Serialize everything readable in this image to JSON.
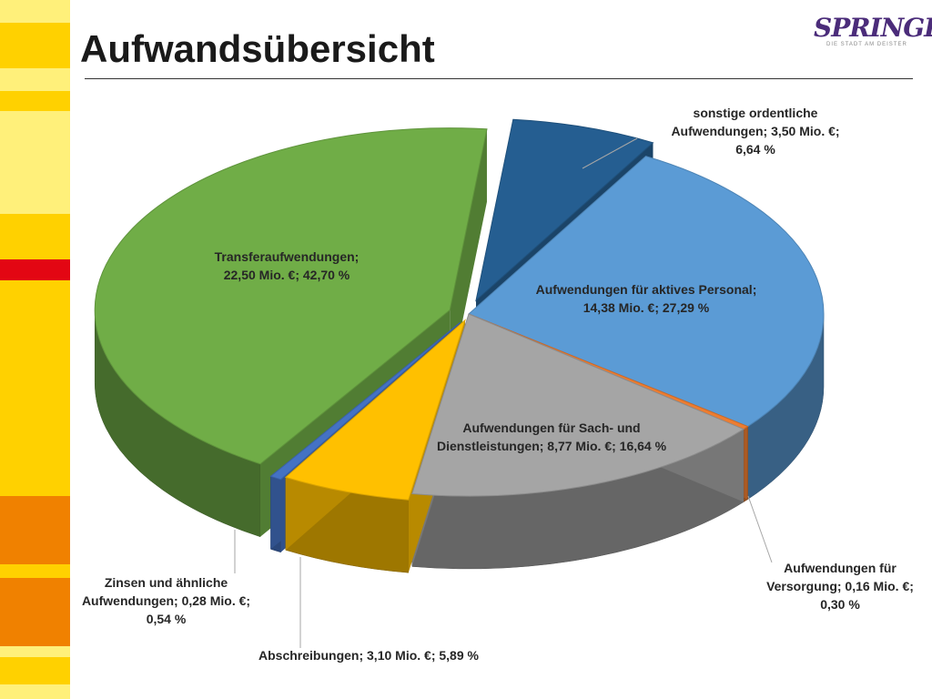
{
  "slide": {
    "title": "Aufwandsübersicht"
  },
  "logo": {
    "text": "SPRINGE.",
    "tagline": "DIE STADT AM DEISTER"
  },
  "colors": {
    "stripe_palette": [
      "#ffd100",
      "#fff07a",
      "#f7e24a",
      "#e30613",
      "#f08100"
    ],
    "green": "#70ad47",
    "blue": "#5b9bd5",
    "dark_blue": "#255e91",
    "gray": "#a5a5a5",
    "gold": "#ffc000",
    "orange": "#ed7d31",
    "small_blue": "#4472c4"
  },
  "chart_data": {
    "type": "pie",
    "unit": "Mio. €",
    "slices": [
      {
        "label_line1": "sonstige ordentliche",
        "label_line2": "Aufwendungen; 3,50 Mio. €;",
        "label_line3": "6,64 %",
        "value": 3.5,
        "percent": 6.64,
        "color": "#255e91"
      },
      {
        "label_line1": "Aufwendungen für aktives Personal;",
        "label_line2": "14,38 Mio. €; 27,29 %",
        "value": 14.38,
        "percent": 27.29,
        "color": "#5b9bd5"
      },
      {
        "label_line1": "Aufwendungen für",
        "label_line2": "Versorgung; 0,16 Mio. €;",
        "label_line3": "0,30 %",
        "value": 0.16,
        "percent": 0.3,
        "color": "#ed7d31"
      },
      {
        "label_line1": "Aufwendungen für Sach- und",
        "label_line2": "Dienstleistungen; 8,77 Mio. €; 16,64 %",
        "value": 8.77,
        "percent": 16.64,
        "color": "#a5a5a5"
      },
      {
        "label_line1": "Abschreibungen; 3,10 Mio. €; 5,89 %",
        "value": 3.1,
        "percent": 5.89,
        "color": "#ffc000"
      },
      {
        "label_line1": "Zinsen und ähnliche",
        "label_line2": "Aufwendungen; 0,28 Mio. €;",
        "label_line3": "0,54 %",
        "value": 0.28,
        "percent": 0.54,
        "color": "#4472c4"
      },
      {
        "label_line1": "Transferaufwendungen;",
        "label_line2": "22,50 Mio. €; 42,70 %",
        "value": 22.5,
        "percent": 42.7,
        "color": "#70ad47"
      }
    ]
  }
}
